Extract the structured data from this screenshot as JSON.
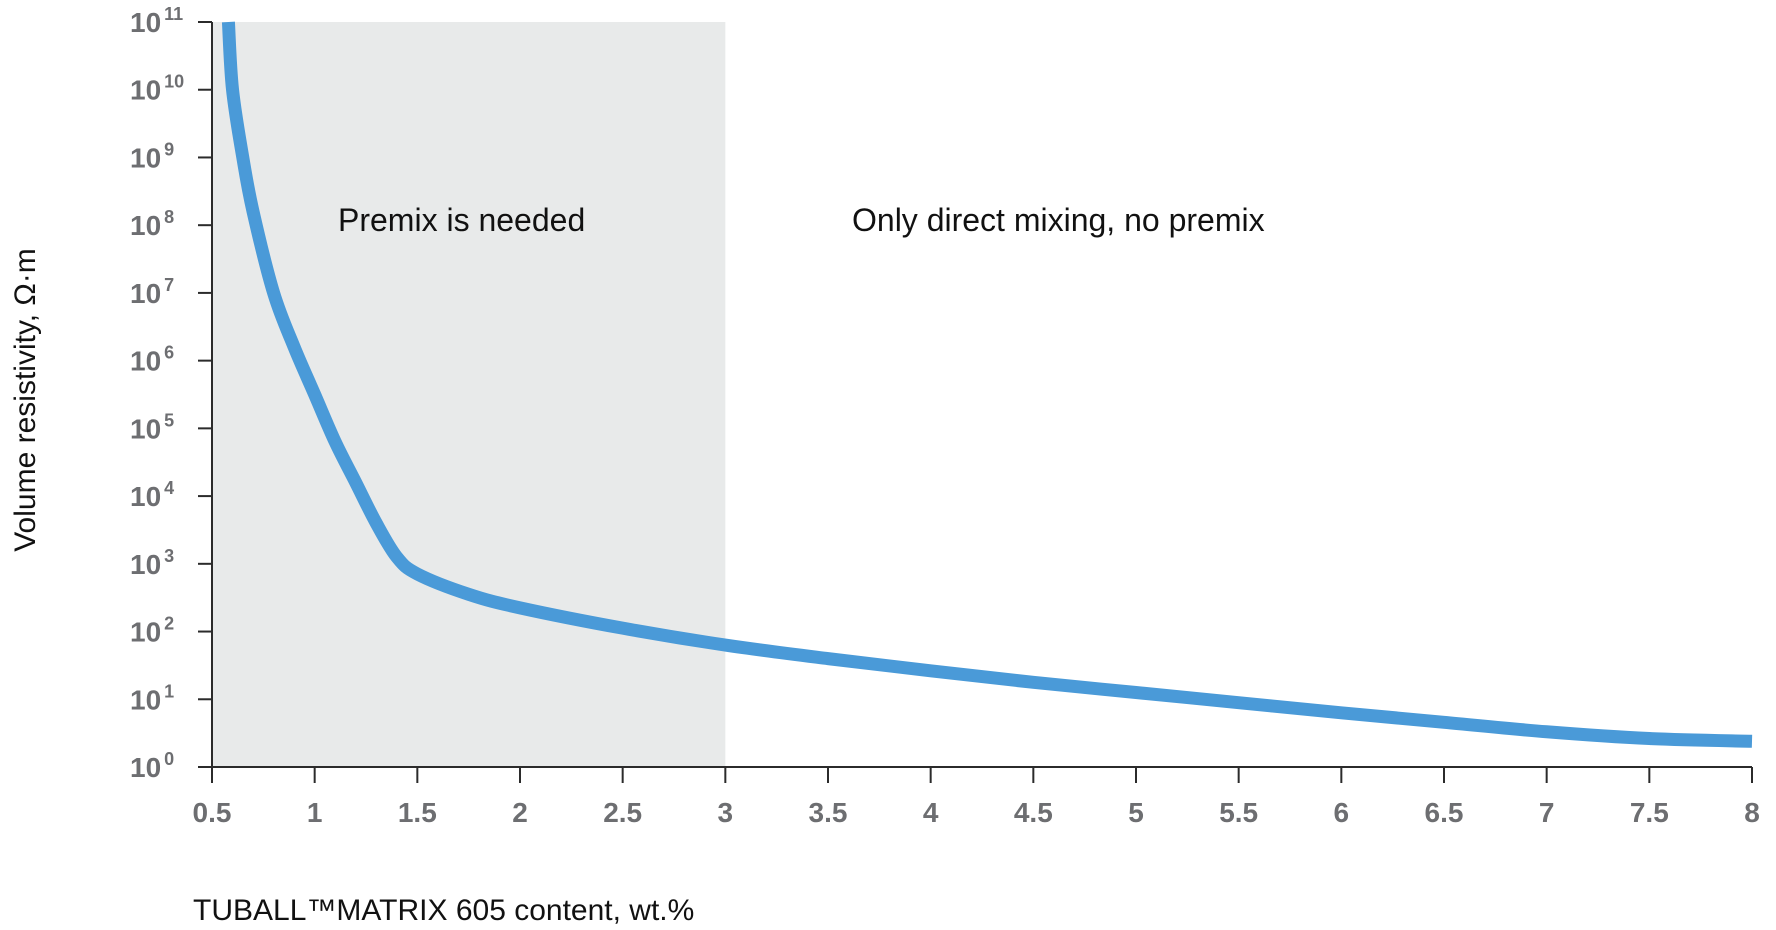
{
  "chart_data": {
    "type": "line",
    "xlabel": "TUBALL™MATRIX 605 content, wt.%",
    "ylabel": "Volume resistivity, Ω·m",
    "xlim": [
      0.5,
      8
    ],
    "ylim_log10": [
      0,
      11
    ],
    "y_scale": "log",
    "x_ticks": [
      "0.5",
      "1",
      "1.5",
      "2",
      "2.5",
      "3",
      "3.5",
      "4",
      "4.5",
      "5",
      "5.5",
      "6",
      "6.5",
      "7",
      "7.5",
      "8"
    ],
    "y_ticks": [
      {
        "base": "10",
        "exp": "11"
      },
      {
        "base": "10",
        "exp": "10"
      },
      {
        "base": "10",
        "exp": "9"
      },
      {
        "base": "10",
        "exp": "8"
      },
      {
        "base": "10",
        "exp": "7"
      },
      {
        "base": "10",
        "exp": "6"
      },
      {
        "base": "10",
        "exp": "5"
      },
      {
        "base": "10",
        "exp": "4"
      },
      {
        "base": "10",
        "exp": "3"
      },
      {
        "base": "10",
        "exp": "2"
      },
      {
        "base": "10",
        "exp": "1"
      },
      {
        "base": "10",
        "exp": "0"
      }
    ],
    "shaded_region": {
      "x_from": 0.5,
      "x_to": 3.0,
      "color": "#e8eaea"
    },
    "region_labels": {
      "left": "Premix is needed",
      "right": "Only direct mixing, no premix"
    },
    "series": [
      {
        "color": "#4a9ad8",
        "points": [
          {
            "x": 0.58,
            "y_log10": 11.0
          },
          {
            "x": 0.6,
            "y_log10": 10.0
          },
          {
            "x": 0.65,
            "y_log10": 9.0
          },
          {
            "x": 0.7,
            "y_log10": 8.2
          },
          {
            "x": 0.8,
            "y_log10": 7.0
          },
          {
            "x": 0.9,
            "y_log10": 6.2
          },
          {
            "x": 1.0,
            "y_log10": 5.5
          },
          {
            "x": 1.1,
            "y_log10": 4.8
          },
          {
            "x": 1.2,
            "y_log10": 4.2
          },
          {
            "x": 1.3,
            "y_log10": 3.6
          },
          {
            "x": 1.4,
            "y_log10": 3.1
          },
          {
            "x": 1.5,
            "y_log10": 2.85
          },
          {
            "x": 1.75,
            "y_log10": 2.55
          },
          {
            "x": 2.0,
            "y_log10": 2.35
          },
          {
            "x": 2.5,
            "y_log10": 2.05
          },
          {
            "x": 3.0,
            "y_log10": 1.8
          },
          {
            "x": 3.5,
            "y_log10": 1.6
          },
          {
            "x": 4.0,
            "y_log10": 1.42
          },
          {
            "x": 4.5,
            "y_log10": 1.25
          },
          {
            "x": 5.0,
            "y_log10": 1.1
          },
          {
            "x": 5.5,
            "y_log10": 0.95
          },
          {
            "x": 6.0,
            "y_log10": 0.8
          },
          {
            "x": 6.5,
            "y_log10": 0.66
          },
          {
            "x": 7.0,
            "y_log10": 0.52
          },
          {
            "x": 7.5,
            "y_log10": 0.42
          },
          {
            "x": 8.0,
            "y_log10": 0.38
          }
        ]
      }
    ],
    "grid": false,
    "colors": {
      "axis": "#2b2b2b",
      "tick_text": "#6d6e71",
      "line": "#4a9ad8",
      "shade": "#e8eaea"
    }
  }
}
